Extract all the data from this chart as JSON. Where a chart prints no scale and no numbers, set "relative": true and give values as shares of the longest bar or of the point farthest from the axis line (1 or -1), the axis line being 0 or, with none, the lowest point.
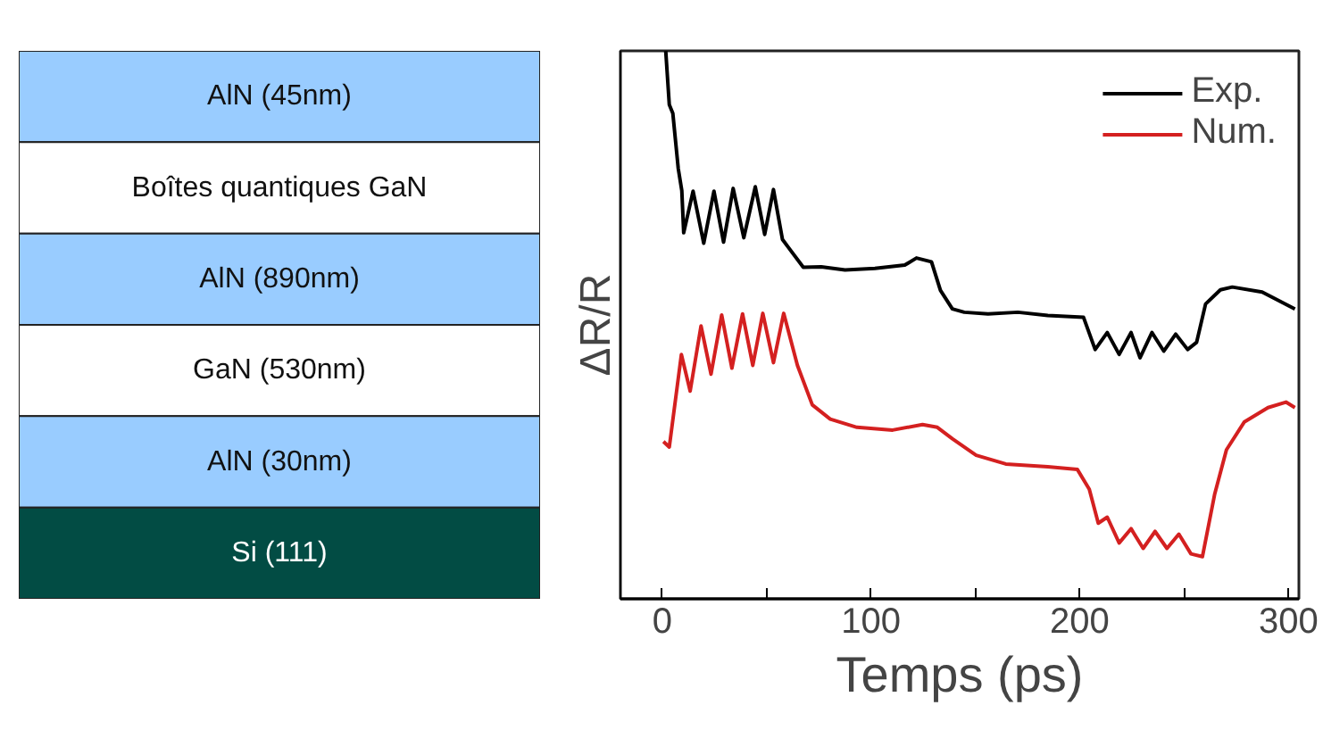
{
  "chart_data": [
    {
      "type": "other",
      "categories": [
        "AlN (45nm)",
        "Boîtes quantiques GaN",
        "AlN (890nm)",
        "GaN (530nm)",
        "AlN (30nm)",
        "Si (111)"
      ],
      "colors": [
        "#99ccff",
        "#ffffff",
        "#99ccff",
        "#ffffff",
        "#99ccff",
        "#024c44"
      ]
    },
    {
      "type": "line",
      "relative": true,
      "xlabel": "Temps (ps)",
      "ylabel": "ΔR/R",
      "xlim": [
        -20,
        305
      ],
      "xticks": [
        0,
        {
          "value": 50,
          "label": null
        },
        100,
        {
          "value": 150,
          "label": null
        },
        200,
        {
          "value": 250,
          "label": null
        },
        300
      ],
      "legend": "top right",
      "grid": false,
      "series": [
        {
          "name": "Exp.",
          "color": "#000000",
          "x": [
            1.7,
            3.4,
            5.1,
            7.7,
            9.4,
            10.3,
            14.8,
            19.9,
            24.8,
            29.4,
            34.0,
            39.1,
            44.6,
            49.1,
            53.3,
            57.6,
            60.5,
            67.6,
            76.2,
            87.6,
            101.9,
            116.2,
            121.8,
            129.0,
            133.3,
            139.0,
            144.7,
            156.1,
            170.4,
            184.7,
            201.8,
            207.4,
            213.2,
            218.9,
            224.6,
            228.9,
            234.6,
            240.3,
            246.0,
            251.7,
            256.0,
            260.3,
            267.4,
            273.1,
            287.4,
            303.1
          ],
          "values": [
            1.0,
            0.902,
            0.886,
            0.785,
            0.745,
            0.668,
            0.744,
            0.649,
            0.744,
            0.651,
            0.749,
            0.659,
            0.752,
            0.665,
            0.747,
            0.656,
            0.641,
            0.605,
            0.606,
            0.6,
            0.603,
            0.609,
            0.622,
            0.615,
            0.563,
            0.529,
            0.523,
            0.52,
            0.523,
            0.517,
            0.514,
            0.455,
            0.486,
            0.446,
            0.486,
            0.44,
            0.486,
            0.452,
            0.483,
            0.455,
            0.468,
            0.538,
            0.564,
            0.569,
            0.56,
            0.529
          ]
        },
        {
          "name": "Num.",
          "color": "#d42020",
          "x": [
            0.6,
            3.4,
            9.2,
            13.4,
            18.6,
            23.4,
            28.5,
            33.4,
            38.5,
            43.4,
            48.2,
            53.3,
            58.2,
            64.8,
            71.9,
            80.5,
            93.3,
            110.4,
            124.7,
            131.8,
            139.0,
            150.4,
            164.6,
            184.7,
            198.9,
            204.6,
            208.9,
            213.2,
            218.9,
            224.6,
            230.4,
            236.1,
            241.8,
            247.5,
            253.3,
            258.8,
            264.6,
            270.3,
            278.9,
            290.2,
            298.8,
            303.1
          ],
          "values": [
            0.287,
            0.277,
            0.446,
            0.379,
            0.498,
            0.41,
            0.518,
            0.421,
            0.52,
            0.426,
            0.521,
            0.431,
            0.521,
            0.426,
            0.354,
            0.328,
            0.313,
            0.308,
            0.318,
            0.313,
            0.292,
            0.262,
            0.246,
            0.241,
            0.236,
            0.2,
            0.138,
            0.149,
            0.102,
            0.128,
            0.092,
            0.123,
            0.092,
            0.118,
            0.082,
            0.077,
            0.19,
            0.272,
            0.323,
            0.349,
            0.359,
            0.349
          ]
        }
      ]
    }
  ]
}
